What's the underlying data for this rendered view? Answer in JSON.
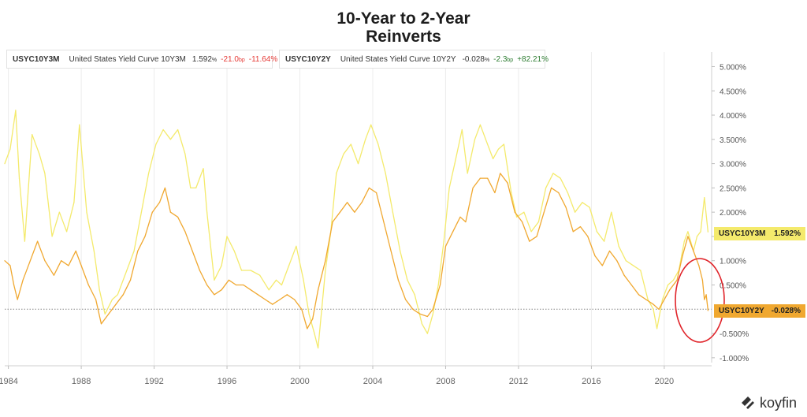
{
  "page": {
    "title_line1": "10-Year to 2-Year",
    "title_line2": "Reinverts",
    "logo_text": "koyfin"
  },
  "legend": [
    {
      "symbol": "USYC10Y3M",
      "name": "United States Yield Curve 10Y3M",
      "value": "1.592",
      "unit": "%",
      "change_bp": "-21.0",
      "bp_unit": "bp",
      "change_pct": "-11.64%",
      "change_bp_sign": "neg",
      "change_pct_sign": "neg",
      "color": "#f4ea6c"
    },
    {
      "symbol": "USYC10Y2Y",
      "name": "United States Yield Curve 10Y2Y",
      "value": "-0.028",
      "unit": "%",
      "change_bp": "-2.3",
      "bp_unit": "bp",
      "change_pct": "+82.21%",
      "change_bp_sign": "pos",
      "change_pct_sign": "pos",
      "color": "#f0a830"
    }
  ],
  "tags": [
    {
      "symbol": "USYC10Y3M",
      "value": "1.592%",
      "color": "#f4ea6c"
    },
    {
      "symbol": "USYC10Y2Y",
      "value": "-0.028%",
      "color": "#f0a830"
    }
  ],
  "chart_data": {
    "type": "line",
    "title": "10-Year to 2-Year Reinverts",
    "xlabel": "",
    "ylabel": "",
    "xlim": [
      1983.8,
      2022.6
    ],
    "ylim": [
      -1.1,
      5.3
    ],
    "x_ticks": [
      "1984",
      "1988",
      "1992",
      "1996",
      "2000",
      "2004",
      "2008",
      "2012",
      "2016",
      "2020"
    ],
    "x_tick_values": [
      1984,
      1988,
      1992,
      1996,
      2000,
      2004,
      2008,
      2012,
      2016,
      2020
    ],
    "y_ticks": [
      "-1.000%",
      "-0.500%",
      "0.500%",
      "1.000%",
      "1.500%",
      "2.000%",
      "2.500%",
      "3.000%",
      "3.500%",
      "4.000%",
      "4.500%",
      "5.000%"
    ],
    "y_tick_values": [
      -1.0,
      -0.5,
      0.5,
      1.0,
      1.5,
      2.0,
      2.5,
      3.0,
      3.5,
      4.0,
      4.5,
      5.0
    ],
    "zero_line": "dotted",
    "grid": "vertical",
    "annotation": "red circle around the 2022 end of USYC10Y2Y",
    "series": [
      {
        "name": "USYC10Y3M",
        "color": "#f4ea6c",
        "points": [
          [
            1983.8,
            3.0
          ],
          [
            1984.1,
            3.3
          ],
          [
            1984.4,
            4.1
          ],
          [
            1984.6,
            2.7
          ],
          [
            1984.9,
            1.4
          ],
          [
            1985.3,
            3.6
          ],
          [
            1985.7,
            3.2
          ],
          [
            1986.0,
            2.8
          ],
          [
            1986.4,
            1.5
          ],
          [
            1986.8,
            2.0
          ],
          [
            1987.2,
            1.6
          ],
          [
            1987.6,
            2.2
          ],
          [
            1987.9,
            3.8
          ],
          [
            1988.3,
            2.0
          ],
          [
            1988.7,
            1.2
          ],
          [
            1989.0,
            0.4
          ],
          [
            1989.3,
            -0.1
          ],
          [
            1989.7,
            0.2
          ],
          [
            1990.0,
            0.3
          ],
          [
            1990.5,
            0.8
          ],
          [
            1990.9,
            1.2
          ],
          [
            1991.3,
            2.0
          ],
          [
            1991.7,
            2.8
          ],
          [
            1992.1,
            3.4
          ],
          [
            1992.5,
            3.7
          ],
          [
            1992.9,
            3.5
          ],
          [
            1993.3,
            3.7
          ],
          [
            1993.7,
            3.2
          ],
          [
            1994.0,
            2.5
          ],
          [
            1994.3,
            2.5
          ],
          [
            1994.7,
            2.9
          ],
          [
            1994.9,
            2.0
          ],
          [
            1995.3,
            0.6
          ],
          [
            1995.7,
            0.9
          ],
          [
            1996.0,
            1.5
          ],
          [
            1996.4,
            1.2
          ],
          [
            1996.8,
            0.8
          ],
          [
            1997.3,
            0.8
          ],
          [
            1997.8,
            0.7
          ],
          [
            1998.3,
            0.4
          ],
          [
            1998.7,
            0.6
          ],
          [
            1999.0,
            0.5
          ],
          [
            1999.4,
            0.9
          ],
          [
            1999.8,
            1.3
          ],
          [
            2000.2,
            0.6
          ],
          [
            2000.5,
            -0.1
          ],
          [
            2000.8,
            -0.5
          ],
          [
            2001.0,
            -0.8
          ],
          [
            2001.4,
            0.8
          ],
          [
            2001.7,
            1.6
          ],
          [
            2002.0,
            2.8
          ],
          [
            2002.4,
            3.2
          ],
          [
            2002.8,
            3.4
          ],
          [
            2003.2,
            3.0
          ],
          [
            2003.6,
            3.5
          ],
          [
            2003.9,
            3.8
          ],
          [
            2004.3,
            3.4
          ],
          [
            2004.7,
            2.8
          ],
          [
            2005.1,
            2.0
          ],
          [
            2005.5,
            1.2
          ],
          [
            2005.9,
            0.6
          ],
          [
            2006.3,
            0.3
          ],
          [
            2006.7,
            -0.3
          ],
          [
            2007.0,
            -0.5
          ],
          [
            2007.3,
            -0.1
          ],
          [
            2007.6,
            0.5
          ],
          [
            2007.9,
            1.4
          ],
          [
            2008.2,
            2.5
          ],
          [
            2008.5,
            3.0
          ],
          [
            2008.9,
            3.7
          ],
          [
            2009.2,
            2.8
          ],
          [
            2009.6,
            3.5
          ],
          [
            2009.9,
            3.8
          ],
          [
            2010.2,
            3.5
          ],
          [
            2010.6,
            3.1
          ],
          [
            2010.9,
            3.3
          ],
          [
            2011.2,
            3.4
          ],
          [
            2011.6,
            2.4
          ],
          [
            2011.9,
            1.9
          ],
          [
            2012.3,
            2.0
          ],
          [
            2012.7,
            1.6
          ],
          [
            2013.1,
            1.8
          ],
          [
            2013.5,
            2.5
          ],
          [
            2013.9,
            2.8
          ],
          [
            2014.3,
            2.7
          ],
          [
            2014.7,
            2.4
          ],
          [
            2015.1,
            2.0
          ],
          [
            2015.5,
            2.2
          ],
          [
            2015.9,
            2.1
          ],
          [
            2016.3,
            1.6
          ],
          [
            2016.7,
            1.4
          ],
          [
            2017.1,
            2.0
          ],
          [
            2017.5,
            1.3
          ],
          [
            2017.9,
            1.0
          ],
          [
            2018.3,
            0.9
          ],
          [
            2018.7,
            0.8
          ],
          [
            2019.1,
            0.2
          ],
          [
            2019.4,
            0.0
          ],
          [
            2019.6,
            -0.4
          ],
          [
            2019.9,
            0.2
          ],
          [
            2020.2,
            0.5
          ],
          [
            2020.5,
            0.6
          ],
          [
            2020.8,
            0.8
          ],
          [
            2021.1,
            1.4
          ],
          [
            2021.3,
            1.6
          ],
          [
            2021.6,
            1.2
          ],
          [
            2021.8,
            1.5
          ],
          [
            2022.0,
            1.6
          ],
          [
            2022.2,
            2.3
          ],
          [
            2022.4,
            1.592
          ]
        ]
      },
      {
        "name": "USYC10Y2Y",
        "color": "#f0a830",
        "points": [
          [
            1983.8,
            1.0
          ],
          [
            1984.1,
            0.9
          ],
          [
            1984.3,
            0.5
          ],
          [
            1984.5,
            0.2
          ],
          [
            1984.8,
            0.6
          ],
          [
            1985.2,
            1.0
          ],
          [
            1985.6,
            1.4
          ],
          [
            1986.0,
            1.0
          ],
          [
            1986.5,
            0.7
          ],
          [
            1986.9,
            1.0
          ],
          [
            1987.3,
            0.9
          ],
          [
            1987.7,
            1.2
          ],
          [
            1988.0,
            0.9
          ],
          [
            1988.4,
            0.5
          ],
          [
            1988.8,
            0.2
          ],
          [
            1989.1,
            -0.3
          ],
          [
            1989.5,
            -0.1
          ],
          [
            1989.9,
            0.1
          ],
          [
            1990.3,
            0.3
          ],
          [
            1990.7,
            0.6
          ],
          [
            1991.1,
            1.2
          ],
          [
            1991.5,
            1.5
          ],
          [
            1991.9,
            2.0
          ],
          [
            1992.3,
            2.2
          ],
          [
            1992.6,
            2.5
          ],
          [
            1992.9,
            2.0
          ],
          [
            1993.3,
            1.9
          ],
          [
            1993.7,
            1.6
          ],
          [
            1994.1,
            1.2
          ],
          [
            1994.5,
            0.8
          ],
          [
            1994.9,
            0.5
          ],
          [
            1995.3,
            0.3
          ],
          [
            1995.7,
            0.4
          ],
          [
            1996.1,
            0.6
          ],
          [
            1996.5,
            0.5
          ],
          [
            1996.9,
            0.5
          ],
          [
            1997.3,
            0.4
          ],
          [
            1997.7,
            0.3
          ],
          [
            1998.1,
            0.2
          ],
          [
            1998.5,
            0.1
          ],
          [
            1998.9,
            0.2
          ],
          [
            1999.3,
            0.3
          ],
          [
            1999.7,
            0.2
          ],
          [
            2000.1,
            0.0
          ],
          [
            2000.4,
            -0.4
          ],
          [
            2000.7,
            -0.2
          ],
          [
            2001.0,
            0.4
          ],
          [
            2001.4,
            1.0
          ],
          [
            2001.8,
            1.8
          ],
          [
            2002.2,
            2.0
          ],
          [
            2002.6,
            2.2
          ],
          [
            2003.0,
            2.0
          ],
          [
            2003.4,
            2.2
          ],
          [
            2003.8,
            2.5
          ],
          [
            2004.2,
            2.4
          ],
          [
            2004.6,
            1.8
          ],
          [
            2005.0,
            1.2
          ],
          [
            2005.4,
            0.6
          ],
          [
            2005.8,
            0.2
          ],
          [
            2006.2,
            0.0
          ],
          [
            2006.6,
            -0.1
          ],
          [
            2007.0,
            -0.15
          ],
          [
            2007.3,
            0.0
          ],
          [
            2007.7,
            0.5
          ],
          [
            2008.0,
            1.3
          ],
          [
            2008.4,
            1.6
          ],
          [
            2008.8,
            1.9
          ],
          [
            2009.1,
            1.8
          ],
          [
            2009.5,
            2.5
          ],
          [
            2009.9,
            2.7
          ],
          [
            2010.3,
            2.7
          ],
          [
            2010.7,
            2.4
          ],
          [
            2011.0,
            2.8
          ],
          [
            2011.4,
            2.6
          ],
          [
            2011.8,
            2.0
          ],
          [
            2012.2,
            1.8
          ],
          [
            2012.6,
            1.4
          ],
          [
            2013.0,
            1.5
          ],
          [
            2013.4,
            2.0
          ],
          [
            2013.8,
            2.5
          ],
          [
            2014.2,
            2.4
          ],
          [
            2014.6,
            2.1
          ],
          [
            2015.0,
            1.6
          ],
          [
            2015.4,
            1.7
          ],
          [
            2015.8,
            1.5
          ],
          [
            2016.2,
            1.1
          ],
          [
            2016.6,
            0.9
          ],
          [
            2017.0,
            1.2
          ],
          [
            2017.4,
            1.0
          ],
          [
            2017.8,
            0.7
          ],
          [
            2018.2,
            0.5
          ],
          [
            2018.6,
            0.3
          ],
          [
            2019.0,
            0.2
          ],
          [
            2019.4,
            0.1
          ],
          [
            2019.7,
            0.0
          ],
          [
            2020.0,
            0.2
          ],
          [
            2020.3,
            0.4
          ],
          [
            2020.7,
            0.6
          ],
          [
            2021.0,
            1.1
          ],
          [
            2021.3,
            1.5
          ],
          [
            2021.6,
            1.2
          ],
          [
            2021.9,
            0.9
          ],
          [
            2022.1,
            0.6
          ],
          [
            2022.2,
            0.2
          ],
          [
            2022.3,
            0.3
          ],
          [
            2022.4,
            -0.028
          ]
        ]
      }
    ]
  }
}
